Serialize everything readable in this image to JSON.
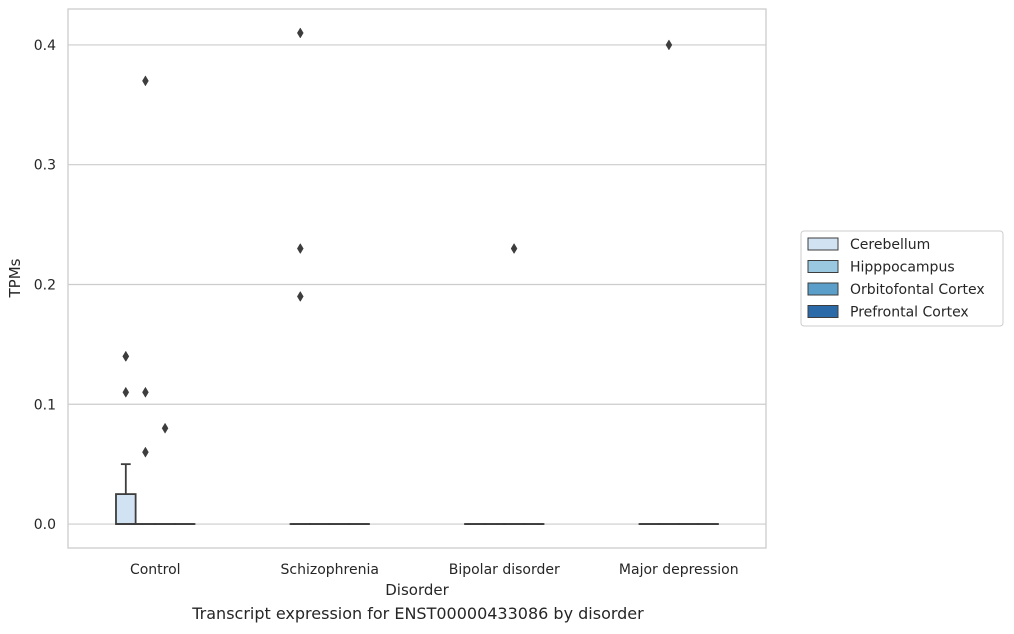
{
  "chart_data": {
    "type": "box",
    "title": "",
    "caption": "Transcript expression for ENST00000433086 by disorder",
    "xlabel": "Disorder",
    "ylabel": "TPMs",
    "categories": [
      "Control",
      "Schizophrenia",
      "Bipolar disorder",
      "Major depression"
    ],
    "ylim": [
      -0.02,
      0.43
    ],
    "yticks": [
      0.0,
      0.1,
      0.2,
      0.3,
      0.4
    ],
    "ytick_labels": [
      "0.0",
      "0.1",
      "0.2",
      "0.3",
      "0.4"
    ],
    "grid": true,
    "legend_position": "right",
    "series": [
      {
        "name": "Cerebellum",
        "color": "#d1e2f2",
        "boxes": [
          {
            "q1": 0.0,
            "median": 0.0,
            "q3": 0.025,
            "whisker_low": 0.0,
            "whisker_high": 0.05,
            "outliers": [
              0.11,
              0.14,
              0.14
            ]
          },
          {
            "q1": 0.0,
            "median": 0.0,
            "q3": 0.0,
            "whisker_low": 0.0,
            "whisker_high": 0.0,
            "outliers": [
              0.19,
              0.23,
              0.41
            ]
          },
          {
            "q1": 0.0,
            "median": 0.0,
            "q3": 0.0,
            "whisker_low": 0.0,
            "whisker_high": 0.0,
            "outliers": []
          },
          {
            "q1": 0.0,
            "median": 0.0,
            "q3": 0.0,
            "whisker_low": 0.0,
            "whisker_high": 0.0,
            "outliers": []
          }
        ]
      },
      {
        "name": "Hipppocampus",
        "color": "#9ac8e0",
        "boxes": [
          {
            "q1": 0.0,
            "median": 0.0,
            "q3": 0.0,
            "whisker_low": 0.0,
            "whisker_high": 0.0,
            "outliers": [
              0.06,
              0.11,
              0.37
            ]
          },
          {
            "q1": 0.0,
            "median": 0.0,
            "q3": 0.0,
            "whisker_low": 0.0,
            "whisker_high": 0.0,
            "outliers": []
          },
          {
            "q1": 0.0,
            "median": 0.0,
            "q3": 0.0,
            "whisker_low": 0.0,
            "whisker_high": 0.0,
            "outliers": []
          },
          {
            "q1": 0.0,
            "median": 0.0,
            "q3": 0.0,
            "whisker_low": 0.0,
            "whisker_high": 0.0,
            "outliers": [
              0.4
            ]
          }
        ]
      },
      {
        "name": "Orbitofontal Cortex",
        "color": "#5a9ec9",
        "boxes": [
          {
            "q1": 0.0,
            "median": 0.0,
            "q3": 0.0,
            "whisker_low": 0.0,
            "whisker_high": 0.0,
            "outliers": [
              0.08
            ]
          },
          {
            "q1": 0.0,
            "median": 0.0,
            "q3": 0.0,
            "whisker_low": 0.0,
            "whisker_high": 0.0,
            "outliers": []
          },
          {
            "q1": 0.0,
            "median": 0.0,
            "q3": 0.0,
            "whisker_low": 0.0,
            "whisker_high": 0.0,
            "outliers": [
              0.23
            ]
          },
          {
            "q1": 0.0,
            "median": 0.0,
            "q3": 0.0,
            "whisker_low": 0.0,
            "whisker_high": 0.0,
            "outliers": []
          }
        ]
      },
      {
        "name": "Prefrontal Cortex",
        "color": "#2b6aa9",
        "boxes": [
          {
            "q1": 0.0,
            "median": 0.0,
            "q3": 0.0,
            "whisker_low": 0.0,
            "whisker_high": 0.0,
            "outliers": []
          },
          {
            "q1": 0.0,
            "median": 0.0,
            "q3": 0.0,
            "whisker_low": 0.0,
            "whisker_high": 0.0,
            "outliers": []
          },
          {
            "q1": 0.0,
            "median": 0.0,
            "q3": 0.0,
            "whisker_low": 0.0,
            "whisker_high": 0.0,
            "outliers": []
          },
          {
            "q1": 0.0,
            "median": 0.0,
            "q3": 0.0,
            "whisker_low": 0.0,
            "whisker_high": 0.0,
            "outliers": []
          }
        ]
      }
    ]
  }
}
